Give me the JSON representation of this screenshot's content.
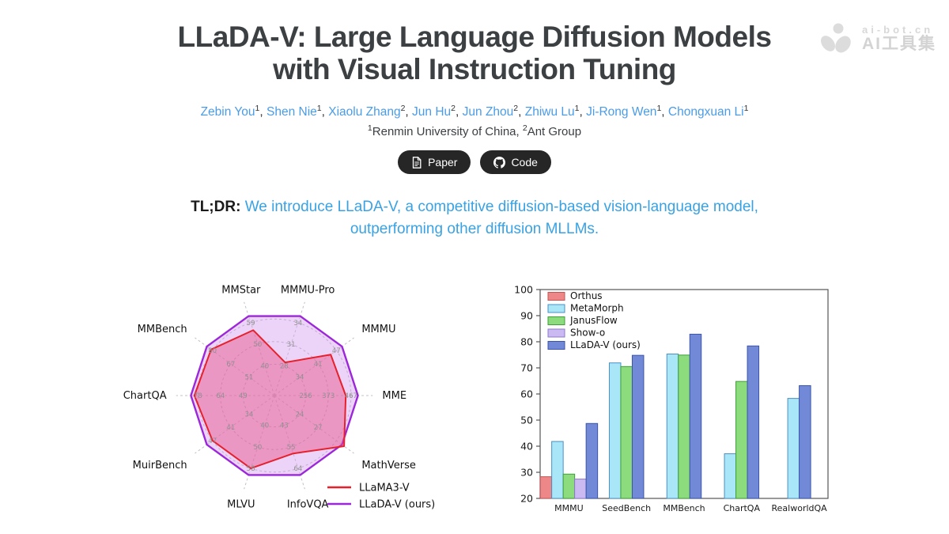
{
  "watermark": {
    "site": "ai-bot.cn",
    "brand": "AI工具集"
  },
  "header": {
    "title_line1": "LLaDA-V: Large Language Diffusion Models",
    "title_line2": "with Visual Instruction Tuning",
    "authors": [
      {
        "name": "Zebin You",
        "sup": "1"
      },
      {
        "name": "Shen Nie",
        "sup": "1"
      },
      {
        "name": "Xiaolu Zhang",
        "sup": "2"
      },
      {
        "name": "Jun Hu",
        "sup": "2"
      },
      {
        "name": "Jun Zhou",
        "sup": "2"
      },
      {
        "name": "Zhiwu Lu",
        "sup": "1"
      },
      {
        "name": "Ji-Rong Wen",
        "sup": "1"
      },
      {
        "name": "Chongxuan Li",
        "sup": "1"
      }
    ],
    "affiliations": [
      {
        "sup": "1",
        "name": "Renmin University of China"
      },
      {
        "sup": "2",
        "name": "Ant Group"
      }
    ],
    "buttons": [
      {
        "label": "Paper",
        "icon": "pdf-icon"
      },
      {
        "label": "Code",
        "icon": "github-icon"
      }
    ]
  },
  "tldr": {
    "label": "TL;DR:",
    "text": "We introduce LLaDA-V, a competitive diffusion-based vision-language model, outperforming other diffusion MLLMs."
  },
  "chart_data": [
    {
      "type": "radar",
      "ring_radii_norm": [
        0.36,
        0.62,
        0.88
      ],
      "max_radius_norm": 0.96,
      "axes": [
        {
          "label": "MME",
          "ticks": [
            "256",
            "373",
            "467"
          ]
        },
        {
          "label": "MathVerse",
          "ticks": [
            "24",
            "27"
          ]
        },
        {
          "label": "InfoVQA",
          "ticks": [
            "43",
            "55",
            "64"
          ]
        },
        {
          "label": "MLVU",
          "ticks": [
            "40",
            "50",
            "58"
          ]
        },
        {
          "label": "MuirBench",
          "ticks": [
            "34",
            "41",
            "47"
          ]
        },
        {
          "label": "ChartQA",
          "ticks": [
            "49",
            "64",
            "78"
          ]
        },
        {
          "label": "MMBench",
          "ticks": [
            "51",
            "67",
            "80"
          ]
        },
        {
          "label": "MMStar",
          "ticks": [
            "40",
            "50",
            "59"
          ]
        },
        {
          "label": "MMMU-Pro",
          "ticks": [
            "28",
            "31",
            "34"
          ]
        },
        {
          "label": "MMMU",
          "ticks": [
            "34",
            "41",
            "47"
          ]
        }
      ],
      "series": [
        {
          "name": "LLaMA3-V",
          "color": "#e8202c",
          "fill": "rgba(233,78,133,0.45)",
          "values_norm": [
            0.82,
            0.99,
            0.7,
            0.88,
            0.88,
            0.92,
            0.9,
            0.79,
            0.4,
            0.8
          ]
        },
        {
          "name": "LLaDA-V (ours)",
          "color": "#9c27d9",
          "fill": "rgba(210,160,240,0.45)",
          "values_norm": [
            0.96,
            0.96,
            0.96,
            0.96,
            0.96,
            0.96,
            0.96,
            0.96,
            0.96,
            0.96
          ]
        }
      ],
      "legend": [
        "LLaMA3-V",
        "LLaDA-V (ours)"
      ],
      "legend_position": "lower right"
    },
    {
      "type": "bar",
      "categories": [
        "MMMU",
        "SeedBench",
        "MMBench",
        "ChartQA",
        "RealworldQA"
      ],
      "series": [
        {
          "name": "Orthus",
          "color": "#ee8888",
          "border": "#c25555",
          "values": [
            28.3,
            null,
            null,
            null,
            null
          ]
        },
        {
          "name": "MetaMorph",
          "color": "#a9e7f8",
          "border": "#4a8fc4",
          "values": [
            41.8,
            71.9,
            75.3,
            37.1,
            58.3
          ]
        },
        {
          "name": "JanusFlow",
          "color": "#8cdb7c",
          "border": "#3fa03a",
          "values": [
            29.3,
            70.5,
            74.9,
            64.8,
            null
          ]
        },
        {
          "name": "Show-o",
          "color": "#cbb9f2",
          "border": "#8f79cc",
          "values": [
            27.4,
            null,
            null,
            null,
            null
          ]
        },
        {
          "name": "LLaDA-V (ours)",
          "color": "#7289d8",
          "border": "#3c55a8",
          "values": [
            48.7,
            74.8,
            82.9,
            78.4,
            63.2
          ]
        }
      ],
      "ylim": [
        20,
        100
      ],
      "yticks": [
        20,
        30,
        40,
        50,
        60,
        70,
        80,
        90,
        100
      ],
      "xlabel": "",
      "ylabel": "",
      "legend_position": "upper left",
      "grid": false
    }
  ]
}
